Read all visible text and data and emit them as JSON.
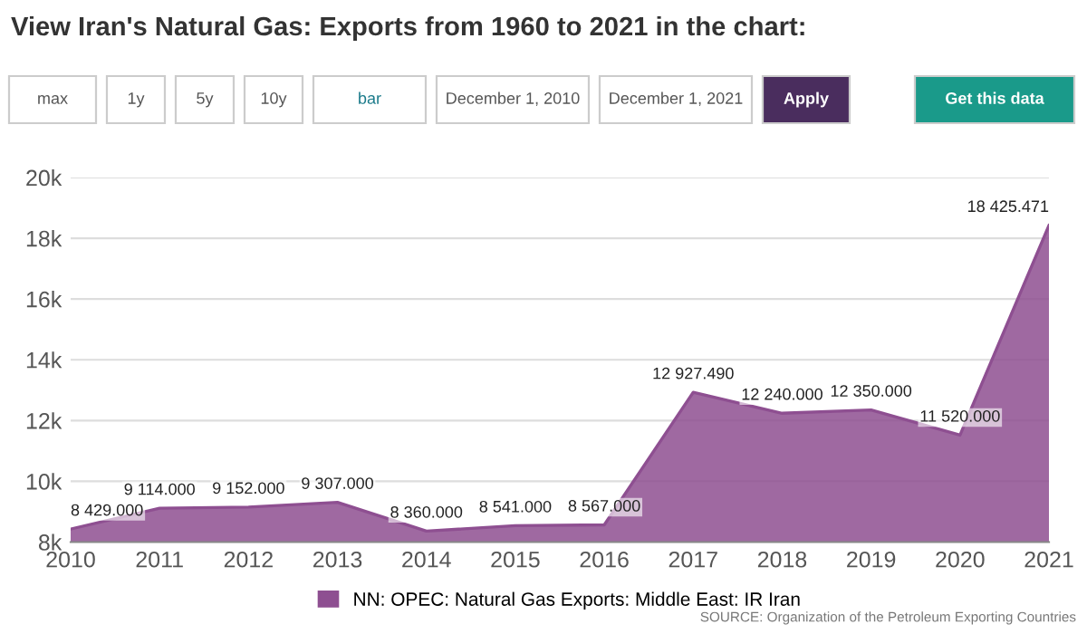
{
  "chart_data": {
    "type": "area",
    "title": "View Iran's Natural Gas: Exports from 1960 to 2021 in the chart:",
    "x": [
      2010,
      2011,
      2012,
      2013,
      2014,
      2015,
      2016,
      2017,
      2018,
      2019,
      2020,
      2021
    ],
    "series": [
      {
        "name": "NN: OPEC: Natural Gas Exports: Middle East: IR Iran",
        "color": "#8e4f91",
        "values": [
          8429,
          9114,
          9152,
          9307,
          8360,
          8541,
          8567,
          12927.49,
          12240,
          12350,
          11520,
          18425.471
        ],
        "value_labels": [
          "8 429.000",
          "9 114.000",
          "9 152.000",
          "9 307.000",
          "8 360.000",
          "8 541.000",
          "8 567.000",
          "12 927.490",
          "12 240.000",
          "12 350.000",
          "11 520.000",
          "18 425.471"
        ]
      }
    ],
    "xlim": [
      2010,
      2021
    ],
    "xticks": [
      2010,
      2011,
      2012,
      2013,
      2014,
      2015,
      2016,
      2017,
      2018,
      2019,
      2020,
      2021
    ],
    "ylim": [
      8000,
      20000
    ],
    "yticks": [
      {
        "value": 8000,
        "label": "8k"
      },
      {
        "value": 10000,
        "label": "10k"
      },
      {
        "value": 12000,
        "label": "12k"
      },
      {
        "value": 14000,
        "label": "14k"
      },
      {
        "value": 16000,
        "label": "16k"
      },
      {
        "value": 18000,
        "label": "18k"
      },
      {
        "value": 20000,
        "label": "20k"
      }
    ],
    "grid": "y",
    "legend": "bottom",
    "annotations": [
      "max",
      "1y",
      "5y",
      "10y",
      "bar",
      "December 1, 2010",
      "December 1, 2021",
      "Apply",
      "Get this data",
      "SOURCE: Organization of the Petroleum Exporting Countries"
    ]
  }
}
